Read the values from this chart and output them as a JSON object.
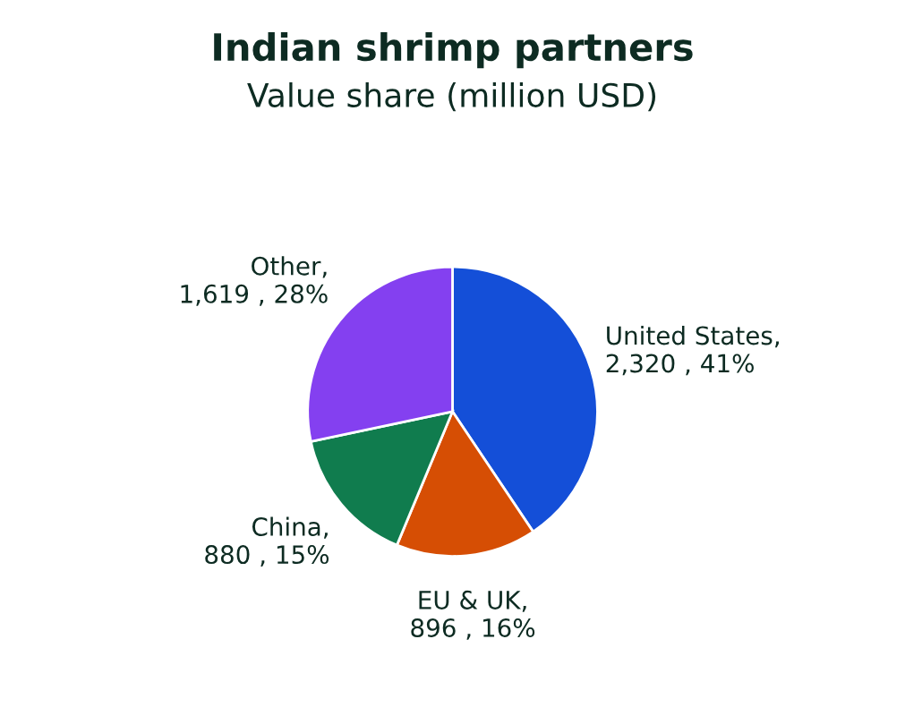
{
  "chart_data": {
    "type": "pie",
    "title": "Indian shrimp partners",
    "subtitle": "Value share (million USD)",
    "categories": [
      "United States",
      "EU & UK",
      "China",
      "Other"
    ],
    "values": [
      2320,
      896,
      880,
      1619
    ],
    "value_labels": [
      ", 2,320 , 41%",
      ", 896 , 16%",
      ", 880 , 15%",
      ", 1,619 , 28%"
    ],
    "colors": [
      "#144fd8",
      "#d64e04",
      "#107c4e",
      "#8440f0"
    ],
    "legend": false
  }
}
